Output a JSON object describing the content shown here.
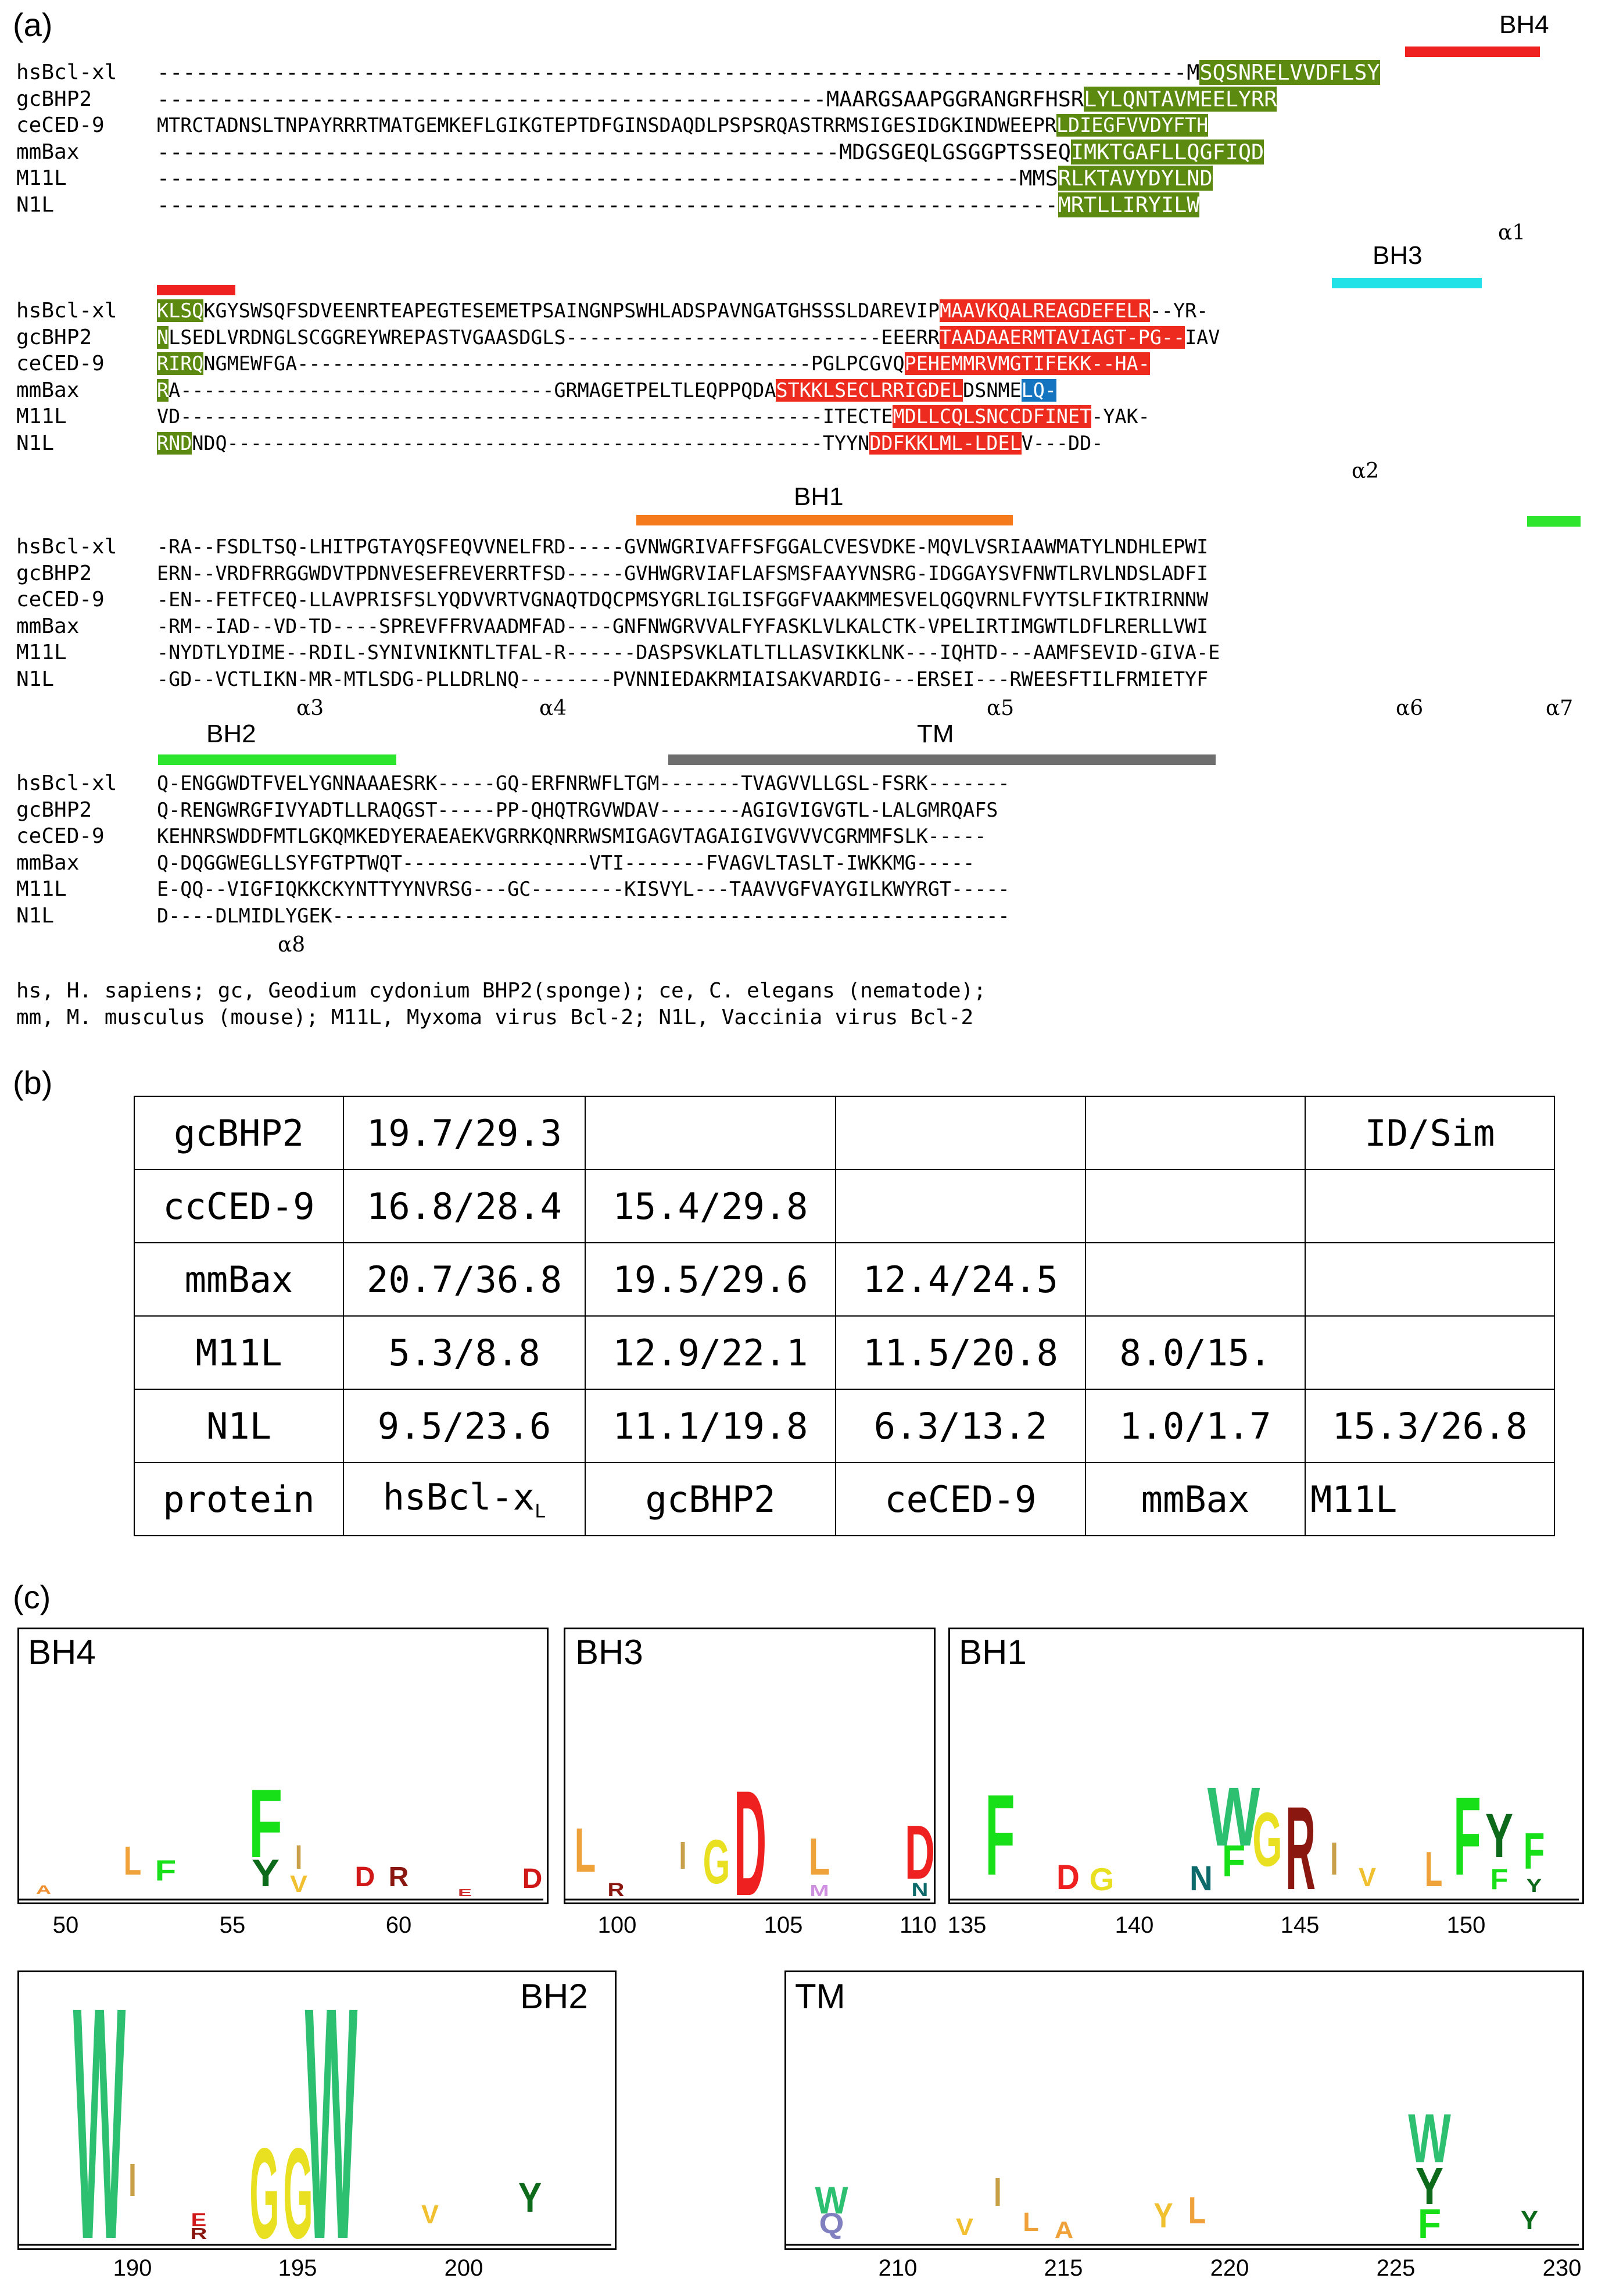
{
  "panels": {
    "a": "(a)",
    "b": "(b)",
    "c": "(c)"
  },
  "colors": {
    "bh4_green": "#5c8a10",
    "bh3_red": "#ee2b1f",
    "bh1_purple": "#a01a9c",
    "helix_teal": "#0c6560",
    "helix_blue": "#1574c0",
    "grey": "#646464",
    "olive": "#a09a1a",
    "cyan": "#21b9c9",
    "bar_red": "#ef2222",
    "bar_cyan": "#21e2e6",
    "bar_orange": "#f47a1c",
    "bar_green": "#2ce52c",
    "bar_grey": "#6e6e6e"
  },
  "alignment": {
    "block1": {
      "annotations": [
        {
          "label": "BH4"
        }
      ],
      "rows": [
        {
          "name": "hsBcl-xl",
          "seq": "--------------------------------------------------------------------------------M",
          "hl": "SQSNRELVVDFLSY"
        },
        {
          "name": "gcBHP2",
          "seq": "----------------------------------------------------MAARGSAAPGGRANGRFHSR",
          "hl": "LYLQNTAVMEELYRR"
        },
        {
          "name": "ceCED-9",
          "seq": "MTRCTADNSLTNPAYRRRTMATGEMKEFLGIKGTEPTDFGINSDAQDLPSPSRQASTRRMSIGESIDGKINDWEEPR",
          "hl": "LDIEGFVVDYFTH"
        },
        {
          "name": "mmBax",
          "seq": "-----------------------------------------------------MDGSGEQLGSGGPTSSEQ",
          "hl": "IMKTGAFLLQGFIQD"
        },
        {
          "name": "M11L",
          "seq": "-------------------------------------------------------------------MMS",
          "hl": "RLKTAVYDYLND"
        },
        {
          "name": "N1L",
          "seq": "----------------------------------------------------------------------",
          "hl": "MRTLLIRYILW"
        }
      ],
      "helix_labels": [
        "α1"
      ]
    },
    "block2": {
      "annotations": [
        {
          "label": "BH3"
        }
      ],
      "rows": [
        {
          "name": "hsBcl-xl",
          "pre": "KLSQ",
          "mid": "KGYSWSQFSDVEENRTEAPEGTESEMETPSAINGNPSWHLADSPAVNGATGHSSSLDAREVIP",
          "hl": "MAAVKQALREAGDEFELR",
          "post": "--YR-"
        },
        {
          "name": "gcBHP2",
          "pre": "N",
          "mid": "LSEDLVRDNGLSCGGREYWREPASTVGAASDGLS---------------------------EEERR",
          "hl": "TAADAAERMTAVIAGT-PG--",
          "post": "IAV"
        },
        {
          "name": "ceCED-9",
          "pre": "RIRQ",
          "mid": "NGMEWFGA--------------------------------------------PGLPCGVQ",
          "hl": "PEHEMMRVMGTIFEKK--HA-",
          "post": ""
        },
        {
          "name": "mmBax",
          "pre": "R",
          "mid": "A--------------------------------GRMAGETPELTLEQPPQDA",
          "hl": "STKKLSECLRRIGDEL",
          "post": "DSNME",
          "hl2": "LQ-"
        },
        {
          "name": "M11L",
          "pre": "",
          "mid": "VD-------------------------------------------------------ITECTE",
          "hl": "MDLLCQLSNCCDFINET",
          "post": "-YAK-"
        },
        {
          "name": "N1L",
          "pre": "RND",
          "mid": "NDQ---------------------------------------------------TYYN",
          "hl": "DDFKKLML-LDEL",
          "post": "V---DD-"
        }
      ],
      "helix_labels": [
        "α2"
      ]
    },
    "block3": {
      "annotations": [
        {
          "label": "BH1"
        }
      ],
      "rows": [
        {
          "name": "hsBcl-xl",
          "text": "-RA--FSDLTSQ-LHITPGTAYQSFEQVVNELFRD-----GVNWGRIVAFFSFGGALCVESVDKE-MQVLVSRIAAWMATYLNDHLEPWI"
        },
        {
          "name": "gcBHP2",
          "text": "ERN--VRDFRRGGWDVTPDNVESEFREVERRTFSD-----GVHWGRVIAFLAFSMSFAAYVNSRG-IDGGAYSVFNWTLRVLNDSLADFI"
        },
        {
          "name": "ceCED-9",
          "text": "-EN--FETFCEQ-LLAVPRISFSLYQDVVRTVGNAQTDQCPMSYGRLIGLISFGGFVAAKMMESVELQGQVRNLFVYTSLFIKTRIRNNW"
        },
        {
          "name": "mmBax",
          "text": "-RM--IAD--VD-TD----SPREVFFRVAADMFAD----GNFNWGRVVALFYFASKLVLKALCTK-VPELIRTIMGWTLDFLRERLLVWI"
        },
        {
          "name": "M11L",
          "text": "-NYDTLYDIME--RDIL-SYNIVNIKNTLTFAL-R------DASPSVKLATLTLLASVIKKLNK---IQHTD---AAMFSEVID-GIVA-E"
        },
        {
          "name": "N1L",
          "text": "-GD--VCTLIKN-MR-MTLSDG-PLLDRLNQ--------PVNNIEDAKRMIAISAKVARDIG---ERSEI---RWEESFTILFRMIETYF"
        }
      ],
      "helix_labels": [
        "α3",
        "α4",
        "α5",
        "α6",
        "α7"
      ]
    },
    "block4": {
      "annotations": [
        {
          "label": "BH2"
        },
        {
          "label": "TM"
        }
      ],
      "rows": [
        {
          "name": "hsBcl-xl",
          "text": "Q-ENGGWDTFVELYGNNAAAESRK-----GQ-ERFNRWFLTGM-------TVAGVVLLGSL-FSRK-------"
        },
        {
          "name": "gcBHP2",
          "text": "Q-RENGWRGFIVYADTLLRAQGST-----PP-QHQTRGVWDAV-------AGIGVIGVGTL-LALGMRQAFS"
        },
        {
          "name": "ceCED-9",
          "text": "KEHNRSWDDFMTLGKQMKEDYERAEAEKVGRRKQNRRWSMIGAGVTAGAIGIVGVVVCGRMMFSLK-----"
        },
        {
          "name": "mmBax",
          "text": "Q-DQGGWEGLLSYFGTPTWQT----------------VTI-------FVAGVLTASLT-IWKKMG-----"
        },
        {
          "name": "M11L",
          "text": "E-QQ--VIGFIQKKCKYNTTYYNVRSG---GC--------KISVYL---TAAVVGFVAYGILKWYRGT-----"
        },
        {
          "name": "N1L",
          "text": "D----DLMIDLYGEK----------------------------------------------------------"
        }
      ],
      "helix_labels": [
        "α8"
      ]
    },
    "footnote": [
      "hs, H. sapiens; gc, Geodium cydonium BHP2(sponge); ce, C. elegans (nematode);",
      "mm, M. musculus (mouse); M11L, Myxoma virus Bcl-2; N1L, Vaccinia virus Bcl-2"
    ]
  },
  "identity_table": {
    "rows": [
      [
        "gcBHP2",
        "19.7/29.3",
        "",
        "",
        "",
        "ID/Sim"
      ],
      [
        "ccCED-9",
        "16.8/28.4",
        "15.4/29.8",
        "",
        "",
        ""
      ],
      [
        "mmBax",
        "20.7/36.8",
        "19.5/29.6",
        "12.4/24.5",
        "",
        ""
      ],
      [
        "M11L",
        "5.3/8.8",
        "12.9/22.1",
        "11.5/20.8",
        "8.0/15.",
        ""
      ],
      [
        "N1L",
        "9.5/23.6",
        "11.1/19.8",
        "6.3/13.2",
        "1.0/1.7",
        "15.3/26.8"
      ]
    ],
    "header": {
      "c0": "protein",
      "c1_main": "hsBcl-x",
      "c1_sub": "L",
      "c2": "gcBHP2",
      "c3": "ceCED-9",
      "c4": "mmBax",
      "c5": "M11L"
    }
  },
  "logos": [
    {
      "title": "BH4",
      "ticks": [
        "50",
        "55",
        "60"
      ]
    },
    {
      "title": "BH3",
      "ticks": [
        "100",
        "105",
        "110"
      ]
    },
    {
      "title": "BH1",
      "ticks": [
        "135",
        "140",
        "145",
        "150"
      ]
    },
    {
      "title": "BH2",
      "ticks": [
        "190",
        "195",
        "200"
      ]
    },
    {
      "title": "TM",
      "ticks": [
        "210",
        "215",
        "220",
        "225",
        "230"
      ]
    }
  ],
  "logo_letters": {
    "bh4": [
      "F",
      "Y",
      "L",
      "F",
      "I",
      "V",
      "D",
      "R",
      "D",
      "A",
      "E"
    ],
    "bh3": [
      "L",
      "I",
      "G",
      "D",
      "L",
      "M",
      "D",
      "N",
      "R"
    ],
    "bh1": [
      "F",
      "D",
      "G",
      "N",
      "F",
      "W",
      "G",
      "R",
      "I",
      "V",
      "L",
      "F",
      "Y",
      "F",
      "Y",
      "F"
    ],
    "bh2": [
      "W",
      "I",
      "G",
      "G",
      "W",
      "V",
      "Y",
      "E",
      "R"
    ],
    "tm": [
      "W",
      "Q",
      "V",
      "I",
      "L",
      "A",
      "Y",
      "L",
      "W",
      "Y",
      "F",
      "Y"
    ]
  }
}
